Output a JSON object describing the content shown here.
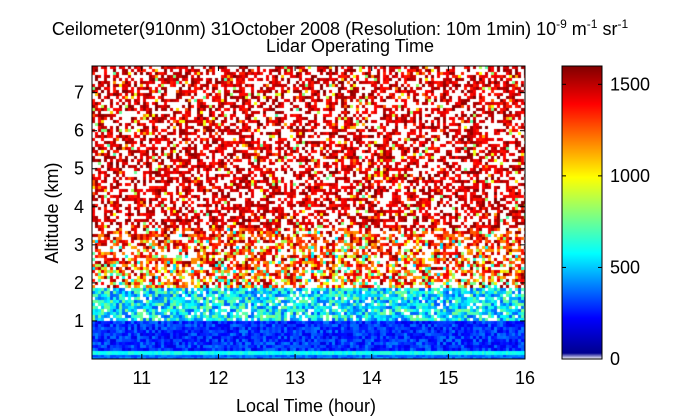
{
  "chart_data": {
    "type": "heatmap",
    "title": "Ceilometer(910nm) 31October 2008 (Resolution: 10m 1min) 10-9 m-1 sr-1",
    "title_parts": {
      "main": "Ceilometer(910nm) 31October 2008 (Resolution: 10m 1min) 10",
      "exp1": "-9",
      "unit1": " m",
      "exp2": "-1",
      "unit2": " sr",
      "exp3": "-1"
    },
    "subtitle": "Lidar Operating Time",
    "xlabel": "Local Time (hour)",
    "ylabel": "Altitude (km)",
    "xlim": [
      10.35,
      16.0
    ],
    "ylim": [
      0.0,
      7.7
    ],
    "xticks": [
      11,
      12,
      13,
      14,
      15,
      16
    ],
    "yticks": [
      1,
      2,
      3,
      4,
      5,
      6,
      7
    ],
    "colorbar": {
      "min": 0,
      "max": 1600,
      "ticks": [
        0,
        500,
        1000,
        1500
      ],
      "colormap": "jet"
    },
    "description_layers": [
      {
        "altitude_range_km": [
          0.0,
          0.25
        ],
        "dominant_value": 300
      },
      {
        "altitude_range_km": [
          0.25,
          1.0
        ],
        "dominant_value": 200
      },
      {
        "altitude_range_km": [
          1.0,
          1.9
        ],
        "dominant_value": 500
      },
      {
        "altitude_range_km": [
          1.9,
          3.5
        ],
        "dominant_value": 1300
      },
      {
        "altitude_range_km": [
          3.5,
          7.7
        ],
        "dominant_value": 1450
      }
    ]
  }
}
